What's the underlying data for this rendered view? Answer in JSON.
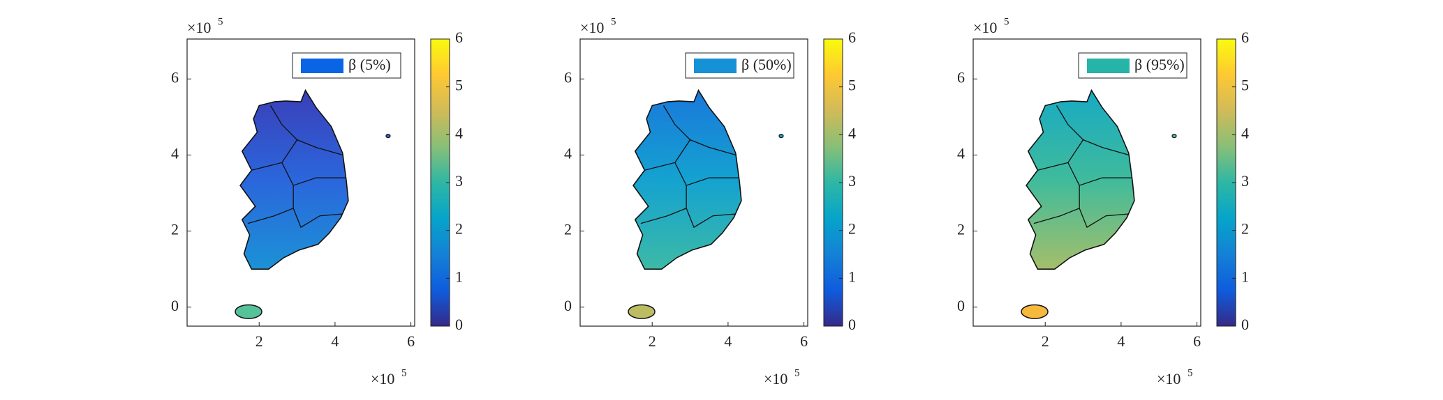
{
  "chart_data": [
    {
      "type": "map",
      "legend": {
        "name": "β (5%)",
        "color": "#0a64e6"
      },
      "x_multiplier": {
        "base": "×10",
        "exponent": "5"
      },
      "y_multiplier": {
        "base": "×10",
        "exponent": "5"
      },
      "xlim": [
        0.1,
        6.1
      ],
      "xticks": [
        2,
        4,
        6
      ],
      "ylim": [
        -0.5,
        7.05
      ],
      "yticks": [
        0,
        2,
        4,
        6
      ],
      "clim": [
        0,
        6
      ],
      "cticks": [
        0,
        1,
        2,
        3,
        4,
        5,
        6
      ],
      "colors": {
        "north": "#3a3fb8",
        "mid": "#2b66dc",
        "south": "#1b92d6",
        "jeju": "#55c29a"
      }
    },
    {
      "type": "map",
      "legend": {
        "name": "β (50%)",
        "color": "#1592d6"
      },
      "x_multiplier": {
        "base": "×10",
        "exponent": "5"
      },
      "y_multiplier": {
        "base": "×10",
        "exponent": "5"
      },
      "xlim": [
        0.1,
        6.1
      ],
      "xticks": [
        2,
        4,
        6
      ],
      "ylim": [
        -0.5,
        7.05
      ],
      "yticks": [
        0,
        2,
        4,
        6
      ],
      "clim": [
        0,
        6
      ],
      "cticks": [
        0,
        1,
        2,
        3,
        4,
        5,
        6
      ],
      "colors": {
        "north": "#1a78dc",
        "mid": "#14a2d0",
        "south": "#3cbaa6",
        "jeju": "#bcbd62"
      }
    },
    {
      "type": "map",
      "legend": {
        "name": "β (95%)",
        "color": "#26b4a8"
      },
      "x_multiplier": {
        "base": "×10",
        "exponent": "5"
      },
      "y_multiplier": {
        "base": "×10",
        "exponent": "5"
      },
      "xlim": [
        0.1,
        6.1
      ],
      "xticks": [
        2,
        4,
        6
      ],
      "ylim": [
        -0.5,
        7.05
      ],
      "yticks": [
        0,
        2,
        4,
        6
      ],
      "clim": [
        0,
        6
      ],
      "cticks": [
        0,
        1,
        2,
        3,
        4,
        5,
        6
      ],
      "colors": {
        "north": "#18aac4",
        "mid": "#3fbb9c",
        "south": "#a4bf6a",
        "jeju": "#f7b93c"
      }
    }
  ]
}
